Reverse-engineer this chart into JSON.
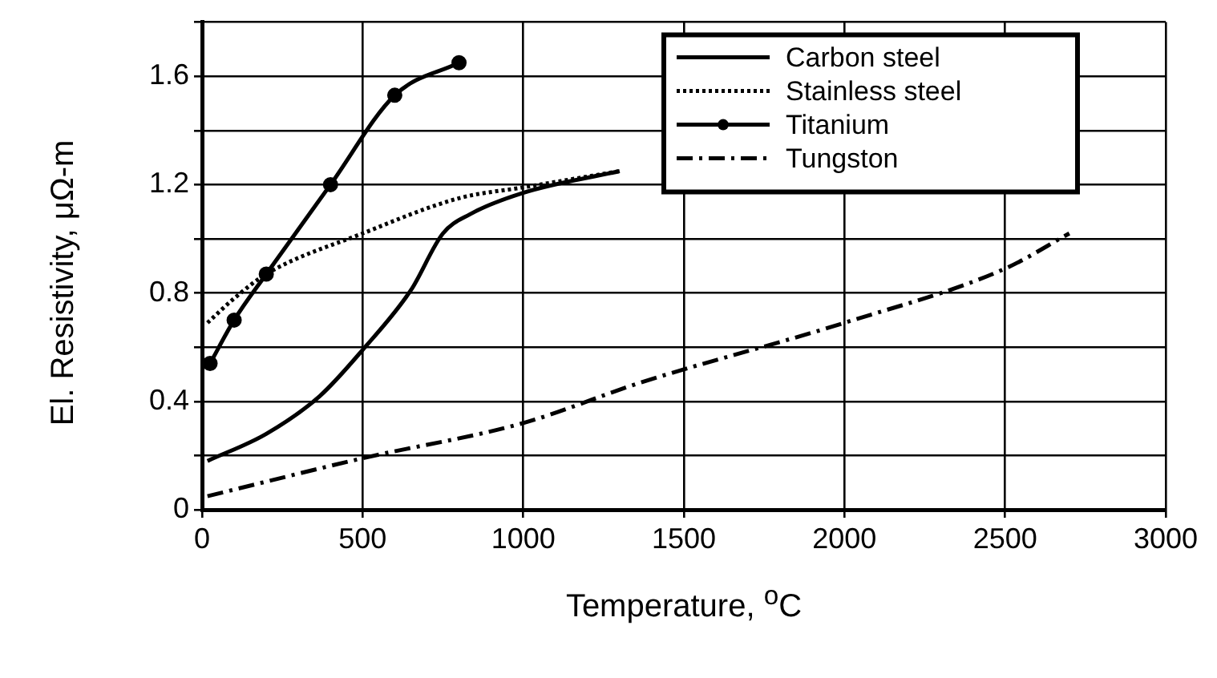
{
  "chart_data": {
    "type": "line",
    "xlabel": "Temperature, $^{o}$C",
    "ylabel": "El. Resistivity, μΩ-m",
    "xlim": [
      0,
      3000
    ],
    "xticks": [
      0,
      500,
      1000,
      1500,
      2000,
      2500,
      3000
    ],
    "ylim": [
      0,
      1.8
    ],
    "yticks": [
      0,
      {
        "value": 0.2,
        "label": null
      },
      0.4,
      {
        "value": 0.6,
        "label": null
      },
      0.8,
      {
        "value": 1.0,
        "label": null
      },
      1.2,
      {
        "value": 1.4,
        "label": null
      },
      1.6,
      {
        "value": 1.8,
        "label": null
      }
    ],
    "grid": true,
    "legend": "top right",
    "series": [
      {
        "name": "Carbon steel",
        "color": "#000000",
        "line_style": "solid",
        "x": [
          17,
          200,
          367,
          500,
          650,
          750,
          833,
          1000,
          1300
        ],
        "values": [
          0.18,
          0.28,
          0.42,
          0.59,
          0.81,
          1.02,
          1.09,
          1.17,
          1.25
        ]
      },
      {
        "name": "Stainless steel",
        "color": "#000000",
        "line_style": "dotted",
        "x": [
          17,
          100,
          200,
          500,
          800,
          1000,
          1300
        ],
        "values": [
          0.69,
          0.78,
          0.87,
          1.02,
          1.15,
          1.19,
          1.25
        ]
      },
      {
        "name": "Titanium",
        "color": "#000000",
        "line_style": "solid",
        "marker": "circle",
        "x": [
          25,
          100,
          200,
          400,
          600,
          800
        ],
        "values": [
          0.54,
          0.7,
          0.87,
          1.2,
          1.53,
          1.65
        ]
      },
      {
        "name": "Tungston",
        "color": "#000000",
        "line_style": "dashdot",
        "x": [
          17,
          500,
          1000,
          1367,
          2000,
          2500,
          2700
        ],
        "values": [
          0.05,
          0.19,
          0.32,
          0.47,
          0.69,
          0.89,
          1.02
        ]
      }
    ]
  }
}
